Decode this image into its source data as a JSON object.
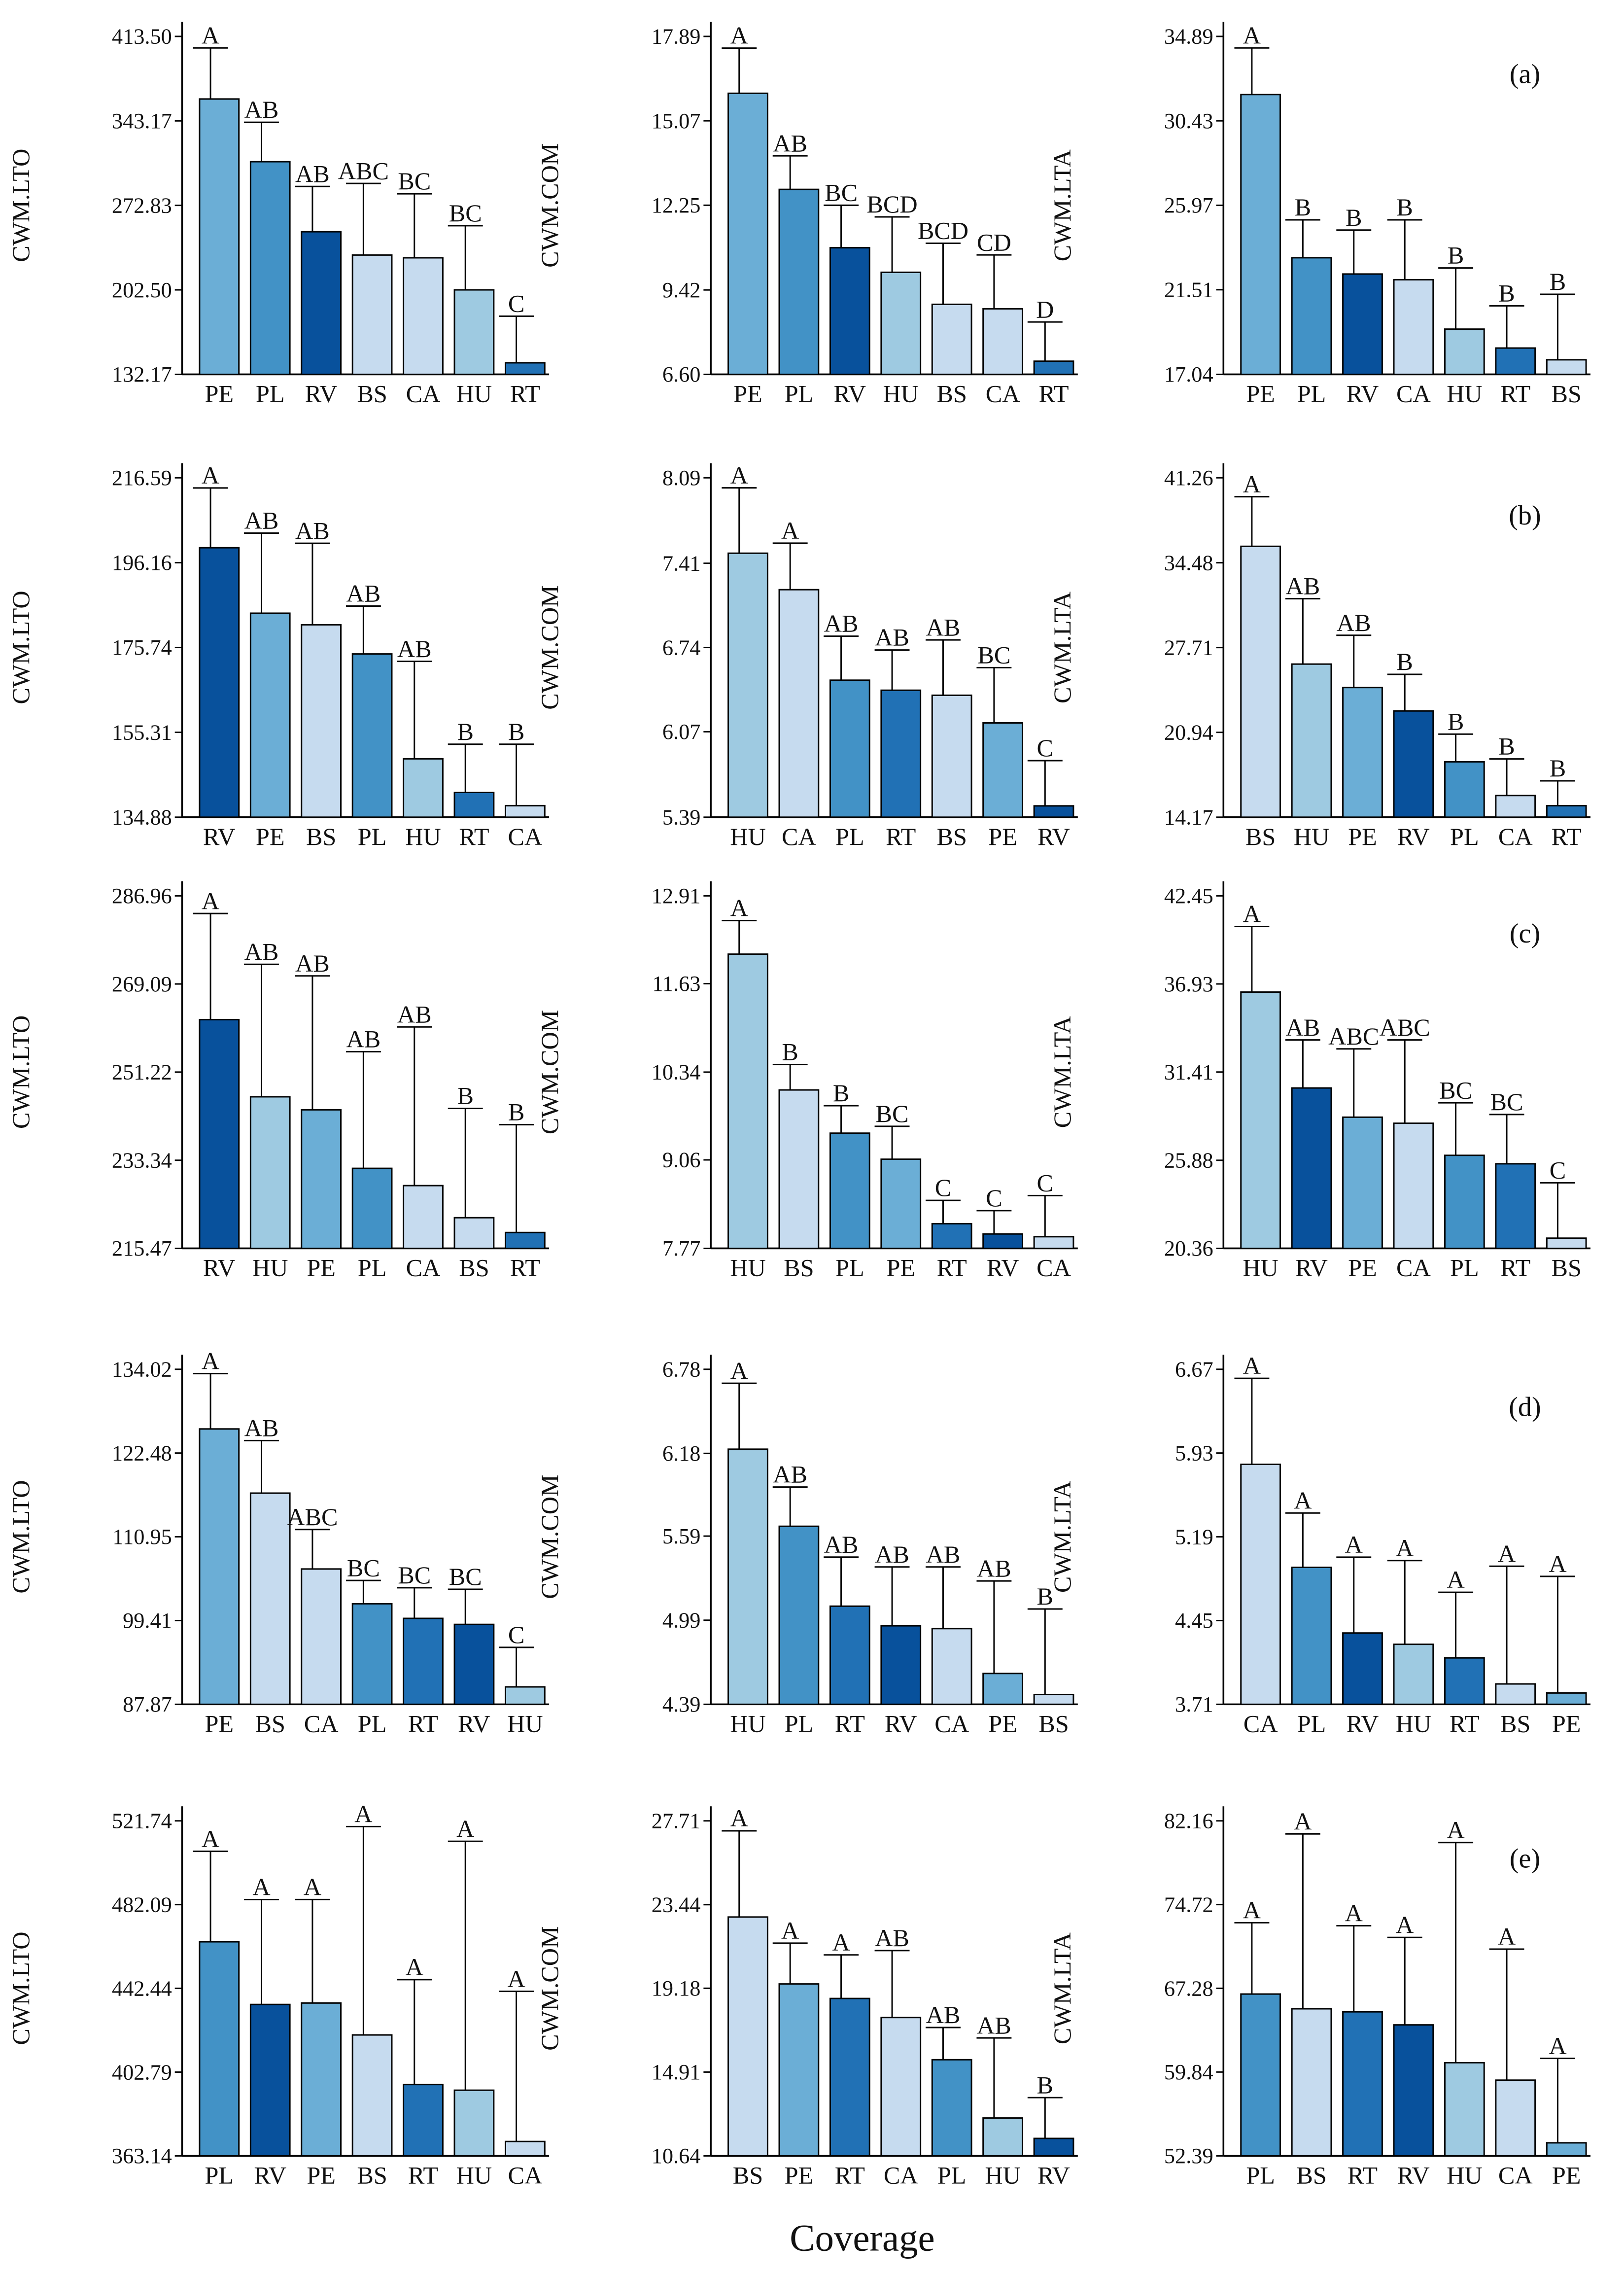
{
  "xlabel": "Coverage",
  "chart_data": [
    {
      "type": "bar",
      "ylabel": "CWM.LTO",
      "categories": [
        "PE",
        "PL",
        "RV",
        "BS",
        "CA",
        "HU",
        "RT"
      ],
      "values": [
        361.4,
        309.2,
        250.9,
        231.5,
        229.2,
        202.5,
        141.8
      ],
      "errors": [
        42.5,
        32.8,
        37.7,
        59.6,
        53.3,
        53.4,
        38.8
      ],
      "letters": [
        "A",
        "AB",
        "AB",
        "ABC",
        "BC",
        "BC",
        "C"
      ],
      "colors": [
        "#6baed6",
        "#4292c6",
        "#08519c",
        "#c6dbef",
        "#c6dbef",
        "#9ecae1",
        "#2171b5"
      ],
      "ylim": [
        132.17,
        413.5
      ],
      "yticks": [
        132.17,
        {
          "value": 202.5,
          "label": "202.50"
        },
        272.83,
        343.17,
        {
          "value": 413.5,
          "label": "413.50"
        }
      ]
    },
    {
      "type": "bar",
      "ylabel": "CWM.COM",
      "categories": [
        "PE",
        "PL",
        "RV",
        "HU",
        "BS",
        "CA",
        "RT"
      ],
      "values": [
        15.99,
        12.78,
        10.83,
        10.01,
        8.94,
        8.79,
        7.04
      ],
      "errors": [
        1.51,
        1.12,
        1.42,
        1.85,
        2.04,
        1.8,
        1.31
      ],
      "letters": [
        "A",
        "AB",
        "BC",
        "BCD",
        "BCD",
        "CD",
        "D"
      ],
      "colors": [
        "#6baed6",
        "#4292c6",
        "#08519c",
        "#9ecae1",
        "#c6dbef",
        "#c6dbef",
        "#2171b5"
      ],
      "ylim": [
        6.6,
        17.89
      ],
      "yticks": [
        {
          "value": 6.6,
          "label": "6.60"
        },
        9.42,
        12.25,
        15.07,
        17.89
      ]
    },
    {
      "type": "bar",
      "ylabel": "CWM.LTA",
      "panel": "(a)",
      "categories": [
        "PE",
        "PL",
        "RV",
        "CA",
        "HU",
        "RT",
        "BS"
      ],
      "values": [
        31.82,
        23.2,
        22.34,
        22.04,
        19.43,
        18.43,
        17.81
      ],
      "errors": [
        2.46,
        2.0,
        2.32,
        3.16,
        3.23,
        2.23,
        3.46
      ],
      "letters": [
        "A",
        "B",
        "B",
        "B",
        "B",
        "B",
        "B"
      ],
      "colors": [
        "#6baed6",
        "#4292c6",
        "#08519c",
        "#c6dbef",
        "#9ecae1",
        "#2171b5",
        "#c6dbef"
      ],
      "ylim": [
        17.04,
        34.89
      ],
      "yticks": [
        17.04,
        21.51,
        25.97,
        30.43,
        34.89
      ]
    },
    {
      "type": "bar",
      "ylabel": "CWM.LTO",
      "categories": [
        "RV",
        "PE",
        "BS",
        "PL",
        "HU",
        "RT",
        "CA"
      ],
      "values": [
        199.75,
        183.99,
        181.2,
        174.18,
        148.93,
        140.84,
        137.66
      ],
      "errors": [
        14.39,
        19.28,
        19.62,
        11.52,
        23.46,
        11.61,
        14.79
      ],
      "letters": [
        "A",
        "AB",
        "AB",
        "AB",
        "AB",
        "B",
        "B"
      ],
      "colors": [
        "#08519c",
        "#6baed6",
        "#c6dbef",
        "#4292c6",
        "#9ecae1",
        "#2171b5",
        "#c6dbef"
      ],
      "ylim": [
        134.88,
        216.59
      ],
      "yticks": [
        134.88,
        155.31,
        175.74,
        196.16,
        216.59
      ]
    },
    {
      "type": "bar",
      "ylabel": "CWM.COM",
      "categories": [
        "HU",
        "CA",
        "PL",
        "RT",
        "BS",
        "PE",
        "RV"
      ],
      "values": [
        7.49,
        7.2,
        6.48,
        6.4,
        6.36,
        6.14,
        5.48
      ],
      "errors": [
        0.52,
        0.37,
        0.35,
        0.32,
        0.44,
        0.44,
        0.36
      ],
      "letters": [
        "A",
        "A",
        "AB",
        "AB",
        "AB",
        "BC",
        "C"
      ],
      "colors": [
        "#9ecae1",
        "#c6dbef",
        "#4292c6",
        "#2171b5",
        "#c6dbef",
        "#6baed6",
        "#08519c"
      ],
      "ylim": [
        5.39,
        8.09
      ],
      "yticks": [
        5.39,
        6.07,
        6.74,
        7.41,
        8.09
      ]
    },
    {
      "type": "bar",
      "ylabel": "CWM.LTA",
      "panel": "(b)",
      "categories": [
        "BS",
        "HU",
        "PE",
        "RV",
        "PL",
        "CA",
        "RT"
      ],
      "values": [
        35.79,
        26.39,
        24.52,
        22.65,
        18.59,
        15.9,
        15.09
      ],
      "errors": [
        3.96,
        5.22,
        4.17,
        2.92,
        2.21,
        2.92,
        1.98
      ],
      "letters": [
        "A",
        "AB",
        "AB",
        "B",
        "B",
        "B",
        "B"
      ],
      "colors": [
        "#c6dbef",
        "#9ecae1",
        "#6baed6",
        "#08519c",
        "#4292c6",
        "#c6dbef",
        "#2171b5"
      ],
      "ylim": [
        14.17,
        41.26
      ],
      "yticks": [
        14.17,
        20.94,
        27.71,
        34.48,
        41.26
      ]
    },
    {
      "type": "bar",
      "ylabel": "CWM.LTO",
      "categories": [
        "RV",
        "HU",
        "PE",
        "PL",
        "CA",
        "BS",
        "RT"
      ],
      "values": [
        261.86,
        246.21,
        243.57,
        231.7,
        228.2,
        221.69,
        218.69
      ],
      "errors": [
        21.52,
        26.86,
        27.16,
        23.66,
        32.17,
        22.16,
        21.87
      ],
      "letters": [
        "A",
        "AB",
        "AB",
        "AB",
        "AB",
        "B",
        "B"
      ],
      "colors": [
        "#08519c",
        "#9ecae1",
        "#6baed6",
        "#4292c6",
        "#c6dbef",
        "#c6dbef",
        "#2171b5"
      ],
      "ylim": [
        215.47,
        286.96
      ],
      "yticks": [
        215.47,
        233.34,
        251.22,
        269.09,
        286.96
      ]
    },
    {
      "type": "bar",
      "ylabel": "CWM.COM",
      "categories": [
        "HU",
        "BS",
        "PL",
        "PE",
        "RT",
        "RV",
        "CA"
      ],
      "values": [
        12.06,
        10.08,
        9.45,
        9.07,
        8.13,
        7.98,
        7.94
      ],
      "errors": [
        0.49,
        0.37,
        0.4,
        0.48,
        0.34,
        0.34,
        0.6
      ],
      "letters": [
        "A",
        "B",
        "B",
        "BC",
        "C",
        "C",
        "C"
      ],
      "colors": [
        "#9ecae1",
        "#c6dbef",
        "#4292c6",
        "#6baed6",
        "#2171b5",
        "#08519c",
        "#c6dbef"
      ],
      "ylim": [
        7.77,
        12.91
      ],
      "yticks": [
        7.77,
        9.06,
        10.34,
        11.63,
        12.91
      ]
    },
    {
      "type": "bar",
      "ylabel": "CWM.LTA",
      "panel": "(c)",
      "categories": [
        "HU",
        "RV",
        "PE",
        "CA",
        "PL",
        "RT",
        "BS"
      ],
      "values": [
        36.42,
        30.41,
        28.58,
        28.2,
        26.19,
        25.66,
        21.0
      ],
      "errors": [
        4.11,
        3.01,
        4.28,
        5.22,
        3.29,
        3.09,
        3.47
      ],
      "letters": [
        "A",
        "AB",
        "ABC",
        "ABC",
        "BC",
        "BC",
        "C"
      ],
      "colors": [
        "#9ecae1",
        "#08519c",
        "#6baed6",
        "#c6dbef",
        "#4292c6",
        "#2171b5",
        "#c6dbef"
      ],
      "ylim": [
        20.36,
        42.45
      ],
      "yticks": [
        20.36,
        25.88,
        31.41,
        36.93,
        42.45
      ]
    },
    {
      "type": "bar",
      "ylabel": "CWM.LTO",
      "categories": [
        "PE",
        "BS",
        "CA",
        "PL",
        "RT",
        "RV",
        "HU"
      ],
      "values": [
        125.8,
        116.96,
        106.51,
        101.72,
        99.71,
        98.88,
        90.27
      ],
      "errors": [
        7.62,
        7.24,
        5.44,
        3.21,
        4.22,
        4.84,
        5.44
      ],
      "letters": [
        "A",
        "AB",
        "ABC",
        "BC",
        "BC",
        "BC",
        "C"
      ],
      "colors": [
        "#6baed6",
        "#c6dbef",
        "#c6dbef",
        "#4292c6",
        "#2171b5",
        "#08519c",
        "#9ecae1"
      ],
      "ylim": [
        87.87,
        134.02
      ],
      "yticks": [
        87.87,
        99.41,
        110.95,
        122.48,
        134.02
      ]
    },
    {
      "type": "bar",
      "ylabel": "CWM.COM",
      "categories": [
        "HU",
        "PL",
        "RT",
        "RV",
        "CA",
        "PE",
        "BS"
      ],
      "values": [
        6.21,
        5.66,
        5.09,
        4.95,
        4.93,
        4.61,
        4.46
      ],
      "errors": [
        0.47,
        0.28,
        0.35,
        0.42,
        0.44,
        0.66,
        0.61
      ],
      "letters": [
        "A",
        "AB",
        "AB",
        "AB",
        "AB",
        "AB",
        "B"
      ],
      "colors": [
        "#9ecae1",
        "#4292c6",
        "#2171b5",
        "#08519c",
        "#c6dbef",
        "#6baed6",
        "#c6dbef"
      ],
      "ylim": [
        4.39,
        6.78
      ],
      "yticks": [
        4.39,
        4.99,
        5.59,
        6.18,
        6.78
      ]
    },
    {
      "type": "bar",
      "ylabel": "CWM.LTA",
      "panel": "(d)",
      "categories": [
        "CA",
        "PL",
        "RV",
        "HU",
        "RT",
        "BS",
        "PE"
      ],
      "values": [
        5.83,
        4.92,
        4.34,
        4.24,
        4.12,
        3.89,
        3.81
      ],
      "errors": [
        0.76,
        0.48,
        0.67,
        0.74,
        0.58,
        1.04,
        1.03
      ],
      "letters": [
        "A",
        "A",
        "A",
        "A",
        "A",
        "A",
        "A"
      ],
      "colors": [
        "#c6dbef",
        "#4292c6",
        "#08519c",
        "#9ecae1",
        "#2171b5",
        "#c6dbef",
        "#6baed6"
      ],
      "ylim": [
        3.71,
        6.67
      ],
      "yticks": [
        3.71,
        4.45,
        5.19,
        5.93,
        6.67
      ]
    },
    {
      "type": "bar",
      "ylabel": "CWM.LTO",
      "categories": [
        "PL",
        "RV",
        "PE",
        "BS",
        "RT",
        "HU",
        "CA"
      ],
      "values": [
        464.49,
        434.83,
        435.5,
        420.39,
        396.92,
        394.23,
        369.96
      ],
      "errors": [
        42.81,
        49.64,
        49.0,
        98.65,
        49.64,
        117.84,
        71.06
      ],
      "letters": [
        "A",
        "A",
        "A",
        "A",
        "A",
        "A",
        "A"
      ],
      "colors": [
        "#4292c6",
        "#08519c",
        "#6baed6",
        "#c6dbef",
        "#2171b5",
        "#9ecae1",
        "#c6dbef"
      ],
      "ylim": [
        363.14,
        521.74
      ],
      "yticks": [
        363.14,
        402.79,
        442.44,
        482.09,
        521.74
      ]
    },
    {
      "type": "bar",
      "ylabel": "CWM.COM",
      "categories": [
        "BS",
        "PE",
        "RT",
        "CA",
        "PL",
        "HU",
        "RV"
      ],
      "values": [
        22.81,
        19.4,
        18.66,
        17.69,
        15.54,
        12.57,
        11.53
      ],
      "errors": [
        4.39,
        2.08,
        2.22,
        3.41,
        1.64,
        4.08,
        2.08
      ],
      "letters": [
        "A",
        "A",
        "A",
        "AB",
        "AB",
        "AB",
        "B"
      ],
      "colors": [
        "#c6dbef",
        "#6baed6",
        "#2171b5",
        "#c6dbef",
        "#4292c6",
        "#9ecae1",
        "#08519c"
      ],
      "ylim": [
        10.64,
        27.71
      ],
      "yticks": [
        10.64,
        14.91,
        19.18,
        23.44,
        27.71
      ]
    },
    {
      "type": "bar",
      "ylabel": "CWM.LTA",
      "panel": "(e)",
      "categories": [
        "PL",
        "BS",
        "RT",
        "RV",
        "HU",
        "CA",
        "PE"
      ],
      "values": [
        66.77,
        65.46,
        65.19,
        64.03,
        60.67,
        59.12,
        53.55
      ],
      "errors": [
        6.34,
        15.54,
        7.65,
        7.77,
        19.56,
        11.64,
        7.5
      ],
      "letters": [
        "A",
        "A",
        "A",
        "A",
        "A",
        "A",
        "A"
      ],
      "colors": [
        "#4292c6",
        "#c6dbef",
        "#2171b5",
        "#08519c",
        "#9ecae1",
        "#c6dbef",
        "#6baed6"
      ],
      "ylim": [
        52.39,
        82.16
      ],
      "yticks": [
        52.39,
        59.84,
        67.28,
        74.72,
        82.16
      ]
    }
  ]
}
